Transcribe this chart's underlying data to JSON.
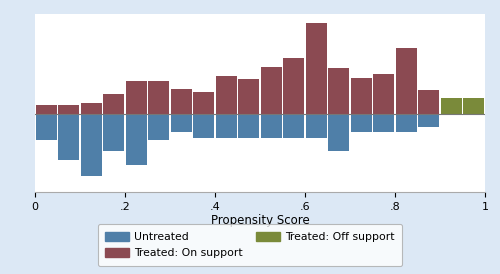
{
  "bin_width": 0.05,
  "bin_centers": [
    0.025,
    0.075,
    0.125,
    0.175,
    0.225,
    0.275,
    0.325,
    0.375,
    0.425,
    0.475,
    0.525,
    0.575,
    0.625,
    0.675,
    0.725,
    0.775,
    0.825,
    0.875,
    0.925,
    0.975
  ],
  "untreated_vals": [
    -0.28,
    -0.5,
    -0.68,
    -0.4,
    -0.56,
    -0.28,
    -0.2,
    -0.26,
    -0.26,
    -0.26,
    -0.26,
    -0.26,
    -0.26,
    -0.4,
    -0.2,
    -0.2,
    -0.2,
    -0.14,
    0.0,
    0.0
  ],
  "treated_on_vals": [
    0.1,
    0.1,
    0.12,
    0.22,
    0.36,
    0.36,
    0.28,
    0.24,
    0.42,
    0.38,
    0.52,
    0.62,
    1.0,
    0.5,
    0.4,
    0.44,
    0.72,
    0.26,
    0.0,
    0.0
  ],
  "treated_off_vals": [
    0.0,
    0.0,
    0.0,
    0.0,
    0.0,
    0.0,
    0.0,
    0.0,
    0.0,
    0.0,
    0.0,
    0.0,
    0.0,
    0.0,
    0.0,
    0.0,
    0.0,
    0.0,
    0.18,
    0.18
  ],
  "color_untreated": "#4f7fa8",
  "color_treated_on": "#8b4a52",
  "color_treated_off": "#7a8a3a",
  "xlabel": "Propensity Score",
  "xlim": [
    0,
    1
  ],
  "ylim": [
    -0.85,
    1.1
  ],
  "background_color": "#dce8f5",
  "plot_background": "#ffffff",
  "legend_labels": [
    "Untreated",
    "Treated: On support",
    "Treated: Off support"
  ],
  "hline_y": 0.0,
  "hline_color": "#777777",
  "xtick_labels": [
    "0",
    ".2",
    ".4",
    ".6",
    ".8",
    "1"
  ],
  "xtick_positions": [
    0,
    0.2,
    0.4,
    0.6,
    0.8,
    1.0
  ]
}
